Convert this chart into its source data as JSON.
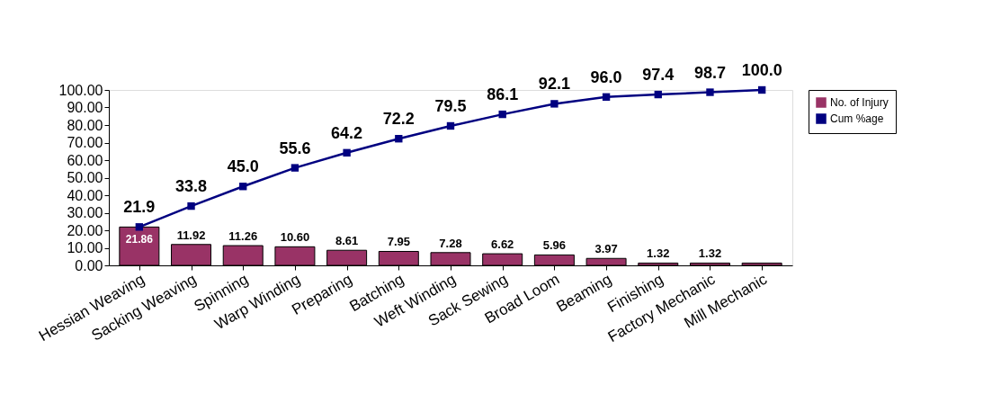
{
  "chart_data": {
    "type": "bar",
    "categories": [
      "Hessian Weaving",
      "Sacking Weaving",
      "Spinning",
      "Warp Winding",
      "Preparing",
      "Batching",
      "Weft Winding",
      "Sack Sewing",
      "Broad Loom",
      "Beaming",
      "Finishing",
      "Factory Mechanic",
      "Mill Mechanic"
    ],
    "series": [
      {
        "name": "No. of Injury",
        "color": "#993366",
        "values": [
          21.86,
          11.92,
          11.26,
          10.6,
          8.61,
          7.95,
          7.28,
          6.62,
          5.96,
          3.97,
          1.32,
          1.32,
          1.32
        ],
        "value_labels": [
          "21.86",
          "11.92",
          "11.26",
          "10.60",
          "8.61",
          "7.95",
          "7.28",
          "6.62",
          "5.96",
          "3.97",
          "1.32",
          "1.32",
          null
        ]
      },
      {
        "name": "Cum %age",
        "type": "line",
        "color": "#000080",
        "marker": "square",
        "values": [
          21.9,
          33.8,
          45.0,
          55.6,
          64.2,
          72.2,
          79.5,
          86.1,
          92.1,
          96.0,
          97.4,
          98.7,
          100.0
        ],
        "value_labels": [
          "21.9",
          "33.8",
          "45.0",
          "55.6",
          "64.2",
          "72.2",
          "79.5",
          "86.1",
          "92.1",
          "96.0",
          "97.4",
          "98.7",
          "100.0"
        ]
      }
    ],
    "ylim": [
      0,
      100
    ],
    "yticks": [
      {
        "value": 0,
        "label": "0.00"
      },
      {
        "value": 10,
        "label": "10.00"
      },
      {
        "value": 20,
        "label": "20.00"
      },
      {
        "value": 30,
        "label": "30.00"
      },
      {
        "value": 40,
        "label": "40.00"
      },
      {
        "value": 50,
        "label": "50.00"
      },
      {
        "value": 60,
        "label": "60.00"
      },
      {
        "value": 70,
        "label": "70.00"
      },
      {
        "value": 80,
        "label": "80.00"
      },
      {
        "value": 90,
        "label": "90.00"
      },
      {
        "value": 100,
        "label": "100.00"
      }
    ],
    "grid": false,
    "legend": "right"
  }
}
